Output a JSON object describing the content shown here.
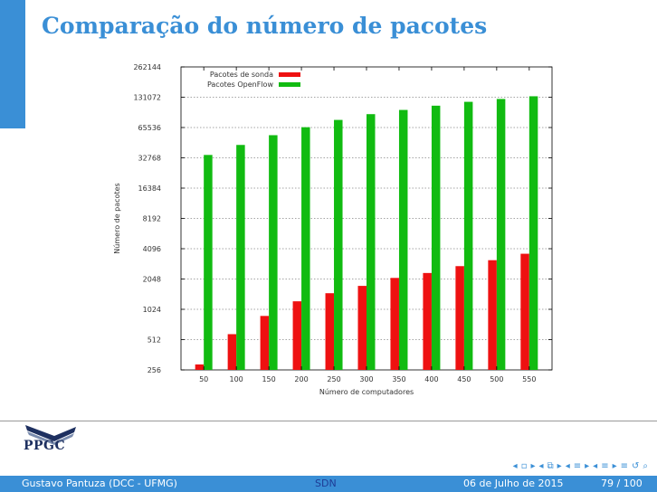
{
  "slide": {
    "title": "Comparação do número de pacotes"
  },
  "chart_data": {
    "type": "bar",
    "title": "",
    "xlabel": "Número de computadores",
    "ylabel": "Número de pacotes",
    "y_scale": "log2",
    "ylim": [
      256,
      262144
    ],
    "y_ticks": [
      "256",
      "512",
      "1024",
      "2048",
      "4096",
      "8192",
      "16384",
      "32768",
      "65536",
      "131072",
      "262144"
    ],
    "grid": "horizontal dotted",
    "legend_position": "top-left",
    "categories": [
      "50",
      "100",
      "150",
      "200",
      "250",
      "300",
      "350",
      "400",
      "450",
      "500",
      "550"
    ],
    "series": [
      {
        "name": "Pacotes de sonda",
        "color": "#ee1111",
        "values": [
          290,
          580,
          880,
          1230,
          1480,
          1750,
          2100,
          2350,
          2750,
          3150,
          3650
        ]
      },
      {
        "name": "Pacotes OpenFlow",
        "color": "#11bb11",
        "values": [
          35000,
          44000,
          55000,
          66000,
          78000,
          89000,
          98000,
          108000,
          118000,
          126000,
          134000
        ]
      }
    ]
  },
  "logo": {
    "text": "PPGC"
  },
  "navigation": {
    "icons": [
      "nav-prev-frame",
      "nav-frame",
      "nav-next-frame",
      "nav-prev-subsection",
      "nav-subsection",
      "nav-next-subsection",
      "nav-prev-section",
      "nav-section",
      "nav-next-section",
      "nav-prev-page",
      "nav-page",
      "nav-next-page",
      "nav-toc",
      "nav-back",
      "nav-search"
    ]
  },
  "footer": {
    "author": "Gustavo Pantuza (DCC - UFMG)",
    "short_title": "SDN",
    "date": "06 de Julho de 2015",
    "page": "79 / 100"
  }
}
